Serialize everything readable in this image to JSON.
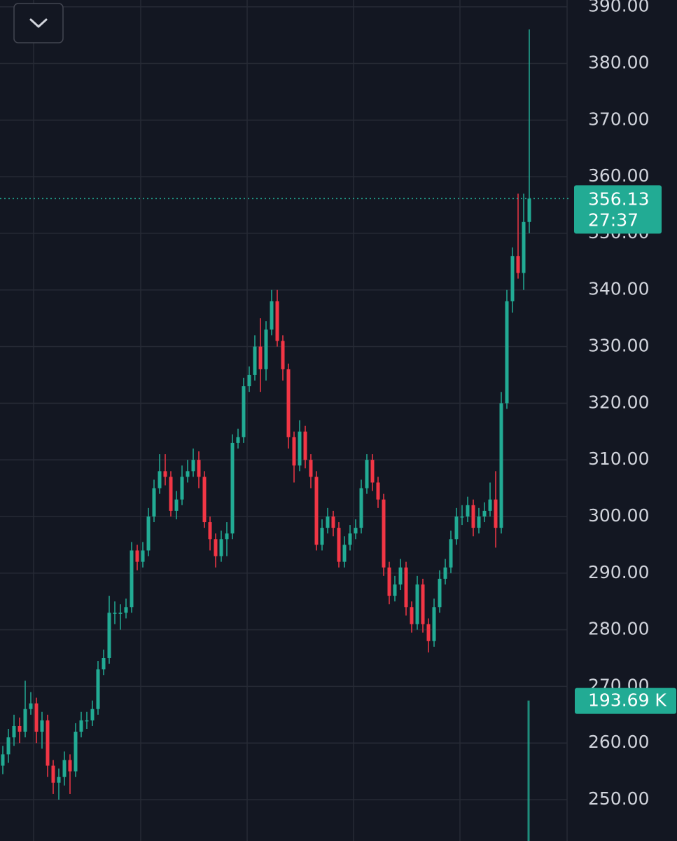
{
  "chart_data": {
    "type": "candlestick",
    "up_color": "#22ab94",
    "down_color": "#f23645",
    "ylim": [
      242.7,
      391.2
    ],
    "yticks": [
      {
        "value": 250,
        "label": "250.00"
      },
      {
        "value": 260,
        "label": "260.00"
      },
      {
        "value": 270,
        "label": "270.00"
      },
      {
        "value": 280,
        "label": "280.00"
      },
      {
        "value": 290,
        "label": "290.00"
      },
      {
        "value": 300,
        "label": "300.00"
      },
      {
        "value": 310,
        "label": "310.00"
      },
      {
        "value": 320,
        "label": "320.00"
      },
      {
        "value": 330,
        "label": "330.00"
      },
      {
        "value": 340,
        "label": "340.00"
      },
      {
        "value": 350,
        "label": "350.00"
      },
      {
        "value": 360,
        "label": "360.00"
      },
      {
        "value": 370,
        "label": "370.00"
      },
      {
        "value": 380,
        "label": "380.00"
      },
      {
        "value": 390,
        "label": "390.00"
      }
    ],
    "grid": true,
    "candles": [
      [
        256,
        259.5,
        254.5,
        258
      ],
      [
        258,
        262.5,
        256.5,
        261
      ],
      [
        261,
        265,
        259.5,
        263
      ],
      [
        263,
        264.5,
        260,
        262
      ],
      [
        262,
        271,
        261,
        266
      ],
      [
        266,
        269,
        265,
        267
      ],
      [
        267,
        268,
        260,
        262
      ],
      [
        262,
        265.5,
        259,
        264
      ],
      [
        264,
        265,
        254,
        256
      ],
      [
        256,
        257,
        251,
        253
      ],
      [
        253,
        255.5,
        250,
        254
      ],
      [
        254,
        258.5,
        252.5,
        257
      ],
      [
        257,
        258,
        251,
        255
      ],
      [
        255,
        263.5,
        254,
        262
      ],
      [
        262,
        265.5,
        261,
        264
      ],
      [
        264,
        265.5,
        262.5,
        264
      ],
      [
        264,
        267.5,
        263,
        266
      ],
      [
        266,
        274.5,
        265,
        273
      ],
      [
        273,
        276.5,
        272,
        275
      ],
      [
        275,
        286,
        274,
        283
      ],
      [
        283,
        285,
        281,
        283
      ],
      [
        283,
        284.5,
        280,
        283
      ],
      [
        283,
        285.5,
        282,
        284
      ],
      [
        284,
        295.5,
        283,
        294
      ],
      [
        294,
        295,
        290.5,
        292
      ],
      [
        292,
        295.5,
        291,
        294
      ],
      [
        294,
        301.5,
        293,
        300
      ],
      [
        300,
        306.5,
        299,
        305
      ],
      [
        305,
        311,
        304,
        308
      ],
      [
        308,
        311,
        305.5,
        307
      ],
      [
        307,
        308,
        300,
        301
      ],
      [
        301,
        304.5,
        299.5,
        303
      ],
      [
        303,
        309,
        302,
        307
      ],
      [
        307,
        310,
        306,
        308
      ],
      [
        308,
        312,
        307,
        310
      ],
      [
        310,
        311.5,
        305,
        307
      ],
      [
        307,
        308,
        298,
        299
      ],
      [
        299,
        300,
        294,
        296
      ],
      [
        296,
        297,
        291,
        293
      ],
      [
        293,
        297.5,
        292,
        296
      ],
      [
        296,
        299,
        293,
        297
      ],
      [
        297,
        314.5,
        296,
        313
      ],
      [
        313,
        315.5,
        312,
        314
      ],
      [
        314,
        324.5,
        313,
        323
      ],
      [
        323,
        326.5,
        322,
        325
      ],
      [
        325,
        332,
        324,
        330
      ],
      [
        330,
        335,
        322,
        326
      ],
      [
        326,
        334.5,
        324,
        333
      ],
      [
        333,
        340,
        332,
        338
      ],
      [
        338,
        340,
        330,
        331
      ],
      [
        331,
        332,
        324,
        326
      ],
      [
        326,
        327,
        312,
        314
      ],
      [
        314,
        315,
        306,
        309
      ],
      [
        309,
        317,
        308,
        315
      ],
      [
        315,
        316,
        308.5,
        310
      ],
      [
        310,
        311,
        305,
        307
      ],
      [
        307,
        308,
        294,
        295
      ],
      [
        295,
        299.5,
        294,
        298
      ],
      [
        298,
        301.5,
        297,
        300
      ],
      [
        300,
        301,
        296.5,
        298
      ],
      [
        298,
        299,
        291,
        292
      ],
      [
        292,
        296.5,
        291,
        295
      ],
      [
        295,
        298.5,
        294,
        297
      ],
      [
        297,
        299.5,
        296,
        298
      ],
      [
        298,
        306.5,
        297,
        305
      ],
      [
        305,
        311,
        304,
        310
      ],
      [
        310,
        311,
        304.5,
        306
      ],
      [
        306,
        307,
        301.5,
        303
      ],
      [
        303,
        304,
        289.5,
        291
      ],
      [
        291,
        292,
        284.5,
        286
      ],
      [
        286,
        289.5,
        285,
        288
      ],
      [
        288,
        292.5,
        287,
        291
      ],
      [
        291,
        292,
        282.5,
        284
      ],
      [
        284,
        285,
        279.5,
        281
      ],
      [
        281,
        289.5,
        280,
        288
      ],
      [
        288,
        289,
        279.5,
        281
      ],
      [
        281,
        282,
        276,
        278
      ],
      [
        278,
        285.5,
        277,
        284
      ],
      [
        284,
        290.5,
        283,
        289
      ],
      [
        289,
        292.5,
        288,
        291
      ],
      [
        291,
        297.5,
        290,
        296
      ],
      [
        296,
        301.5,
        295,
        300
      ],
      [
        300,
        302,
        298.5,
        300
      ],
      [
        300,
        303.5,
        299,
        302
      ],
      [
        302,
        303,
        296.5,
        298
      ],
      [
        298,
        301.5,
        297,
        300
      ],
      [
        300,
        302.5,
        299,
        301
      ],
      [
        301,
        306,
        300,
        303
      ],
      [
        303,
        308,
        294.5,
        298
      ],
      [
        298,
        322,
        297,
        320
      ],
      [
        320,
        340,
        319,
        338
      ],
      [
        338,
        347.5,
        336,
        346
      ],
      [
        346,
        357,
        342,
        343
      ],
      [
        343,
        357,
        340,
        352
      ],
      [
        352,
        386,
        350,
        356.13
      ]
    ],
    "last_price": 356.13,
    "countdown": "27:37",
    "vlim": [
      0,
      1160
    ],
    "last_volume": {
      "value": 193.69,
      "label": "193.69 K"
    }
  }
}
